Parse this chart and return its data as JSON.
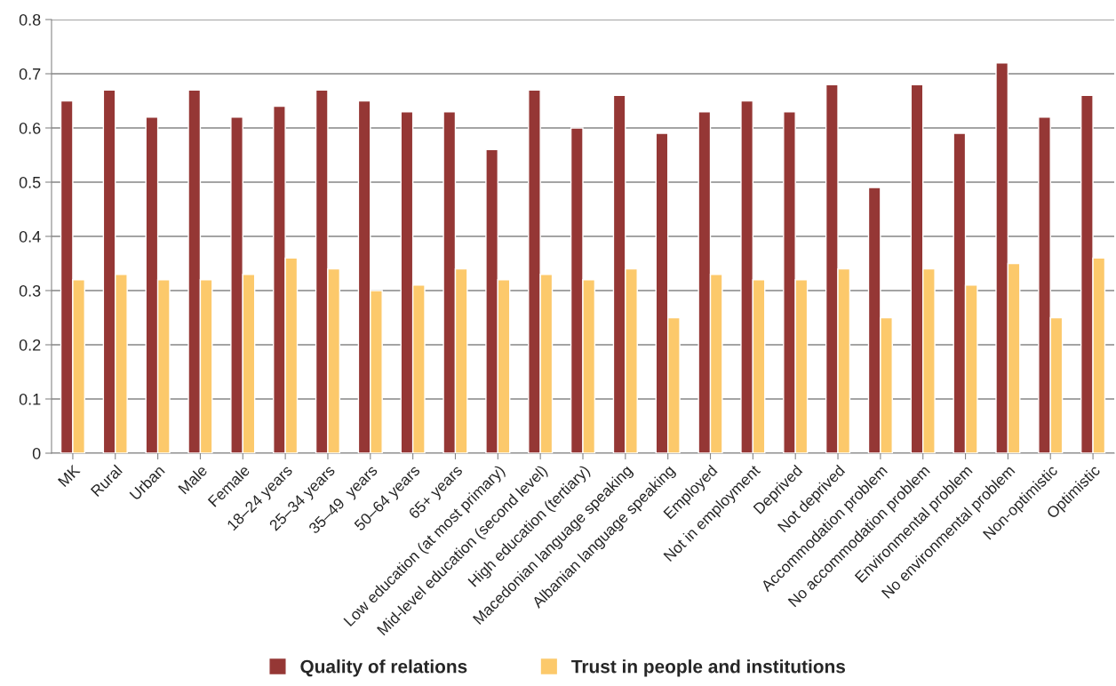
{
  "chart_data": {
    "type": "bar",
    "categories": [
      "MK",
      "Rural",
      "Urban",
      "Male",
      "Female",
      "18–24 years",
      "25–34 years",
      "35–49  years",
      "50–64 years",
      "65+ years",
      "Low education (at most primary)",
      "Mid-level education (second level)",
      "High education (tertiary)",
      "Macedonian language speaking",
      "Albanian language speaking",
      "Employed",
      "Not in employment",
      "Deprived",
      "Not deprived",
      "Accommodation problem",
      "No accommodation problem",
      "Environmental problem",
      "No environmental problem",
      "Non-optimistic",
      "Optimistic"
    ],
    "series": [
      {
        "name": "Quality of relations",
        "color": "#953735",
        "values": [
          0.65,
          0.67,
          0.62,
          0.67,
          0.62,
          0.64,
          0.67,
          0.65,
          0.63,
          0.63,
          0.56,
          0.67,
          0.6,
          0.66,
          0.59,
          0.63,
          0.65,
          0.63,
          0.68,
          0.49,
          0.68,
          0.59,
          0.72,
          0.62,
          0.66
        ]
      },
      {
        "name": "Trust in people and institutions",
        "color": "#fcc96b",
        "values": [
          0.32,
          0.33,
          0.32,
          0.32,
          0.33,
          0.36,
          0.34,
          0.3,
          0.31,
          0.34,
          0.32,
          0.33,
          0.32,
          0.34,
          0.25,
          0.33,
          0.32,
          0.32,
          0.34,
          0.25,
          0.34,
          0.31,
          0.35,
          0.25,
          0.36
        ]
      }
    ],
    "ylim": [
      0,
      0.8
    ],
    "yticks": [
      0,
      0.1,
      0.2,
      0.3,
      0.4,
      0.5,
      0.6,
      0.7,
      0.8
    ],
    "grid": "y",
    "legend": "bottom"
  }
}
